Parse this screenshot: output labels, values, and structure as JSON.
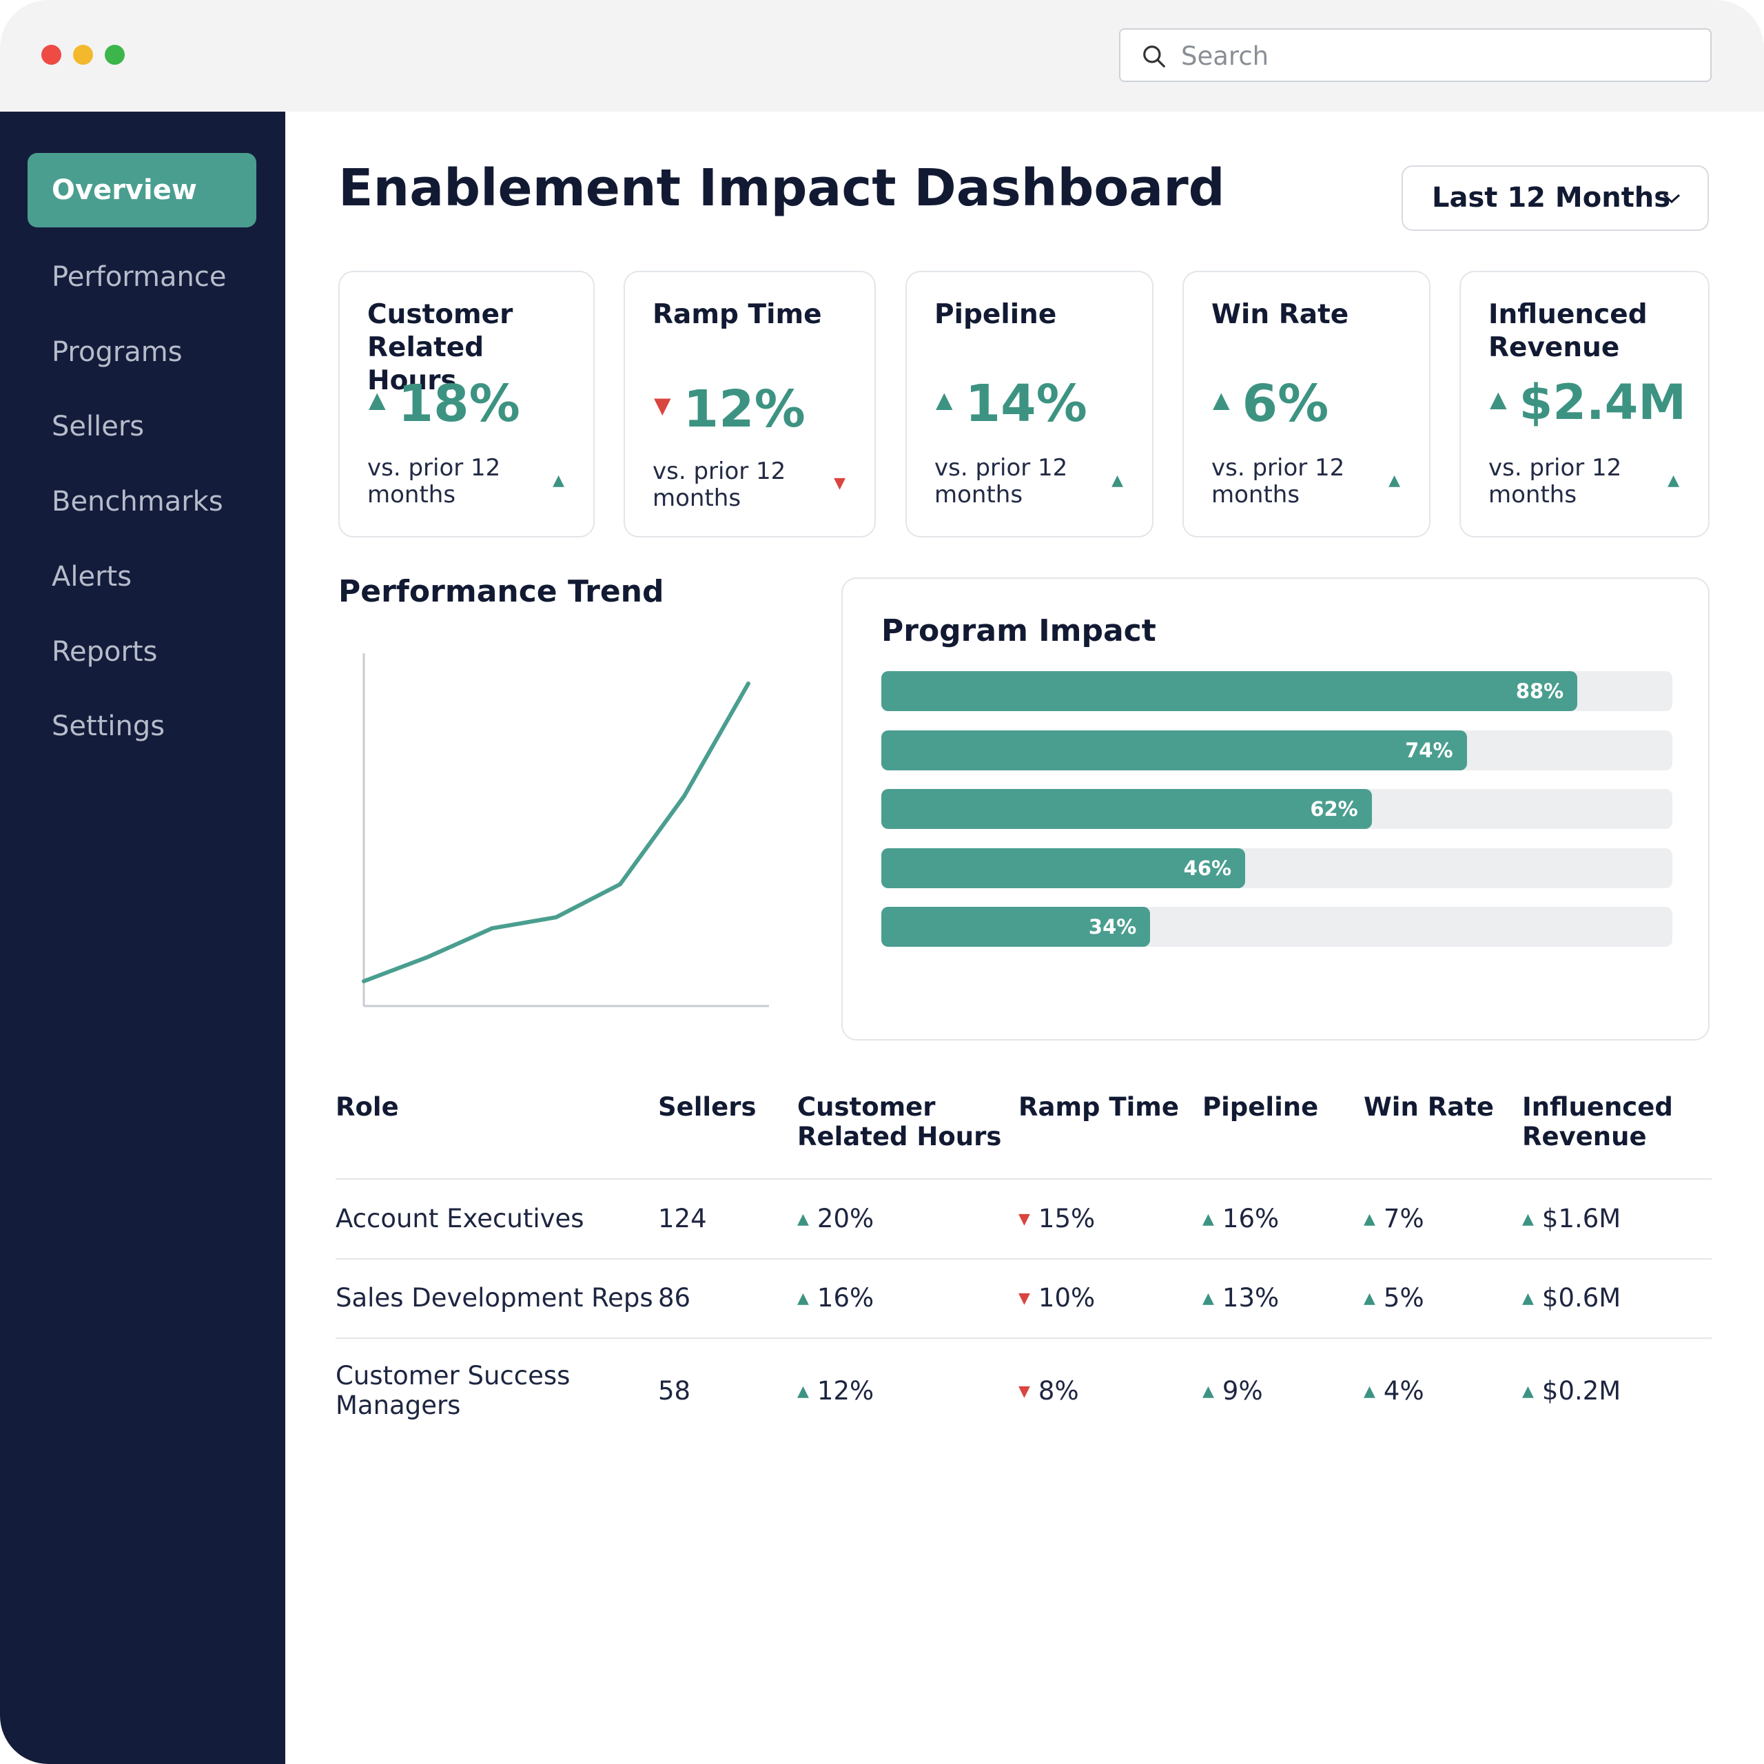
{
  "window": {
    "search_placeholder": "Search"
  },
  "sidebar": {
    "items": [
      {
        "label": "Overview",
        "active": true
      },
      {
        "label": "Performance"
      },
      {
        "label": "Programs"
      },
      {
        "label": "Sellers"
      },
      {
        "label": "Benchmarks"
      },
      {
        "label": "Alerts"
      },
      {
        "label": "Reports"
      },
      {
        "label": "Settings"
      }
    ]
  },
  "header": {
    "title": "Enablement Impact Dashboard",
    "range_label": "Last 12 Months"
  },
  "kpis": [
    {
      "title": "Customer\nRelated Hours",
      "value": "18%",
      "direction": "up",
      "note": "vs. prior 12\nmonths"
    },
    {
      "title": "Ramp Time",
      "value": "12%",
      "direction": "down",
      "note": "vs. prior 12\nmonths"
    },
    {
      "title": "Pipeline",
      "value": "14%",
      "direction": "up",
      "note": "vs. prior 12\nmonths"
    },
    {
      "title": "Win Rate",
      "value": "6%",
      "direction": "up",
      "note": "vs. prior 12\nmonths"
    },
    {
      "title": "Influenced\nRevenue",
      "value": "$2.4M",
      "direction": "up",
      "note": "vs. prior 12\nmonths"
    }
  ],
  "trend": {
    "title": "Performance Trend"
  },
  "impact": {
    "title": "Program Impact"
  },
  "chart_data": [
    {
      "type": "line",
      "title": "Performance Trend",
      "x": [
        1,
        2,
        3,
        4,
        5,
        6,
        7
      ],
      "series": [
        {
          "values": [
            0.1,
            0.32,
            0.58,
            0.68,
            0.98,
            1.78,
            2.8
          ]
        }
      ],
      "grid": false,
      "axes": "left-and-bottom lines, no ticks"
    },
    {
      "type": "bar",
      "orientation": "horizontal",
      "title": "Program Impact",
      "values": [
        88,
        74,
        62,
        46,
        34
      ],
      "labels": [
        "88%",
        "74%",
        "62%",
        "46%",
        "34%"
      ],
      "xlim": [
        0,
        100
      ]
    }
  ],
  "table": {
    "headers": [
      "Role",
      "Sellers",
      "Customer\nRelated Hours",
      "Ramp Time",
      "Pipeline",
      "Win Rate",
      "Influenced\nRevenue"
    ],
    "rows": [
      {
        "role": "Account Executives",
        "sellers": "124",
        "crh": "20%",
        "ramp": "15%",
        "pipeline": "16%",
        "win": "7%",
        "revenue": "$1.6M"
      },
      {
        "role": "Sales Development Reps",
        "sellers": "86",
        "crh": "16%",
        "ramp": "10%",
        "pipeline": "13%",
        "win": "5%",
        "revenue": "$0.6M"
      },
      {
        "role": "Customer Success\nManagers",
        "sellers": "58",
        "crh": "12%",
        "ramp": "8%",
        "pipeline": "9%",
        "win": "4%",
        "revenue": "$0.2M"
      }
    ]
  },
  "colors": {
    "accent": "#4a9e8f",
    "positive": "#3d9382",
    "negative": "#d9453f",
    "sidebar": "#141c3b"
  }
}
